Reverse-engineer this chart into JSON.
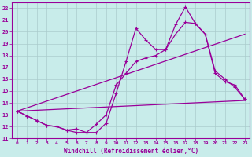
{
  "background_color": "#c8ecea",
  "grid_color": "#aacccc",
  "line_color": "#990099",
  "xlabel": "Windchill (Refroidissement éolien,°C)",
  "xlim": [
    -0.5,
    23.5
  ],
  "ylim": [
    11,
    22.5
  ],
  "xticks": [
    0,
    1,
    2,
    3,
    4,
    5,
    6,
    7,
    8,
    9,
    10,
    11,
    12,
    13,
    14,
    15,
    16,
    17,
    18,
    19,
    20,
    21,
    22,
    23
  ],
  "yticks": [
    11,
    12,
    13,
    14,
    15,
    16,
    17,
    18,
    19,
    20,
    21,
    22
  ],
  "series": [
    {
      "x": [
        0,
        1,
        2,
        3,
        4,
        5,
        6,
        7,
        8,
        9,
        10,
        11,
        12,
        13,
        14,
        15,
        16,
        17,
        18,
        19,
        20,
        21,
        22,
        23
      ],
      "y": [
        13.3,
        12.9,
        12.5,
        12.1,
        12.0,
        11.7,
        11.8,
        11.5,
        11.5,
        12.3,
        14.8,
        17.5,
        20.3,
        19.3,
        18.5,
        18.5,
        20.6,
        22.1,
        20.7,
        19.8,
        16.7,
        16.0,
        15.3,
        14.3
      ],
      "marker": true,
      "linewidth": 0.9
    },
    {
      "x": [
        0,
        1,
        2,
        3,
        4,
        5,
        6,
        7,
        8,
        9,
        10,
        11,
        12,
        13,
        14,
        15,
        16,
        17,
        18,
        19,
        20,
        21,
        22,
        23
      ],
      "y": [
        13.3,
        12.9,
        12.5,
        12.1,
        12.0,
        11.7,
        11.5,
        11.5,
        12.2,
        13.0,
        15.5,
        16.5,
        17.5,
        17.8,
        18.0,
        18.5,
        19.8,
        20.8,
        20.7,
        19.8,
        16.5,
        15.8,
        15.5,
        14.3
      ],
      "marker": true,
      "linewidth": 0.9
    },
    {
      "x": [
        0,
        23
      ],
      "y": [
        13.3,
        19.8
      ],
      "marker": false,
      "linewidth": 0.9
    },
    {
      "x": [
        0,
        23
      ],
      "y": [
        13.3,
        14.2
      ],
      "marker": false,
      "linewidth": 0.9
    }
  ]
}
